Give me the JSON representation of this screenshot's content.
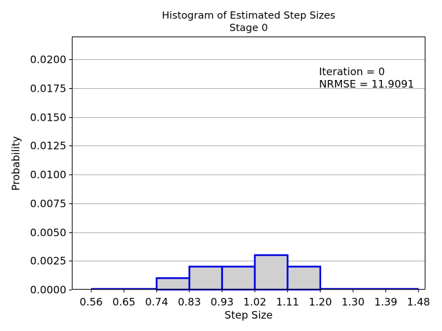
{
  "chart_data": {
    "type": "bar",
    "title": "Histogram of Estimated Step Sizes",
    "subtitle": "Stage 0",
    "xlabel": "Step Size",
    "ylabel": "Probability",
    "grid": "horizontal",
    "categories": [
      "0.56",
      "0.65",
      "0.74",
      "0.83",
      "0.93",
      "1.02",
      "1.11",
      "1.20",
      "1.30",
      "1.39",
      "1.48"
    ],
    "bins": [
      {
        "from": 0.56,
        "to": 0.65,
        "value": 0.0
      },
      {
        "from": 0.65,
        "to": 0.74,
        "value": 0.0
      },
      {
        "from": 0.74,
        "to": 0.83,
        "value": 0.001
      },
      {
        "from": 0.83,
        "to": 0.93,
        "value": 0.002
      },
      {
        "from": 0.93,
        "to": 1.02,
        "value": 0.002
      },
      {
        "from": 1.02,
        "to": 1.11,
        "value": 0.003
      },
      {
        "from": 1.11,
        "to": 1.2,
        "value": 0.002
      },
      {
        "from": 1.2,
        "to": 1.3,
        "value": 0.0
      },
      {
        "from": 1.3,
        "to": 1.39,
        "value": 0.0
      },
      {
        "from": 1.39,
        "to": 1.48,
        "value": 0.0
      }
    ],
    "yticks": [
      "0.0000",
      "0.0025",
      "0.0050",
      "0.0075",
      "0.0100",
      "0.0125",
      "0.0150",
      "0.0175",
      "0.0200"
    ],
    "ylim": [
      0,
      0.022
    ],
    "annotations": [
      "Iteration = 0",
      "NRMSE = 11.9091"
    ],
    "colors": {
      "bar_fill": "#d0d0d0",
      "bar_edge": "#0000e0",
      "grid": "#b0b0b0"
    }
  }
}
